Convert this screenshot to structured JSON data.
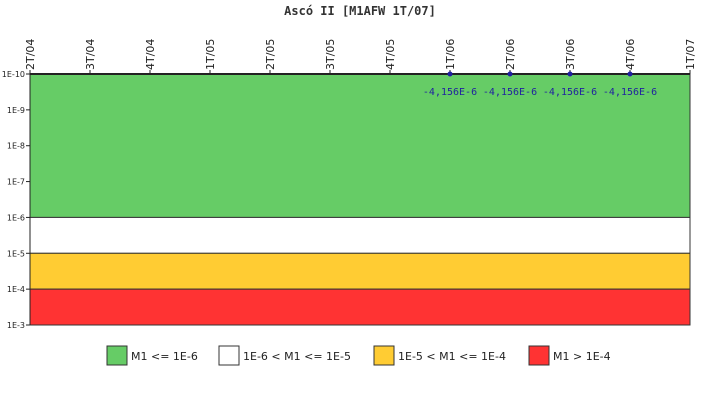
{
  "chart_data": {
    "type": "scatter",
    "title": "Ascó II [M1AFW 1T/07]",
    "xlabel": "",
    "ylabel": "",
    "y_scale": "log",
    "y_orientation": "inverted",
    "ylim": [
      1e-10,
      0.001
    ],
    "categories": [
      "2T/04",
      "3T/04",
      "4T/04",
      "1T/05",
      "2T/05",
      "3T/05",
      "4T/05",
      "1T/06",
      "2T/06",
      "3T/06",
      "4T/06",
      "1T/07"
    ],
    "y_tick_labels": [
      "1E-10",
      "1E-9",
      "1E-8",
      "1E-7",
      "1E-6",
      "1E-5",
      "1E-4",
      "1E-3"
    ],
    "series": [
      {
        "values": [
          null,
          null,
          null,
          null,
          null,
          null,
          null,
          -4.156e-06,
          -4.156e-06,
          -4.156e-06,
          -4.156e-06,
          null
        ],
        "data_labels": [
          "",
          "",
          "",
          "",
          "",
          "",
          "",
          "-4,156E-6",
          "-4,156E-6",
          "-4,156E-6",
          "-4,156E-6",
          ""
        ],
        "color": "#1f1fa0"
      }
    ],
    "bands": [
      {
        "label": "M1 <= 1E-6",
        "from": 1e-10,
        "to": 1e-06,
        "color": "#66cc66"
      },
      {
        "label": "1E-6 < M1 <= 1E-5",
        "from": 1e-06,
        "to": 1e-05,
        "color": "#ffffff"
      },
      {
        "label": "1E-5 < M1 <= 1E-4",
        "from": 1e-05,
        "to": 0.0001,
        "color": "#ffcc33"
      },
      {
        "label": "M1 > 1E-4",
        "from": 0.0001,
        "to": 0.001,
        "color": "#ff3333"
      }
    ],
    "legend_position": "bottom",
    "grid": false
  }
}
